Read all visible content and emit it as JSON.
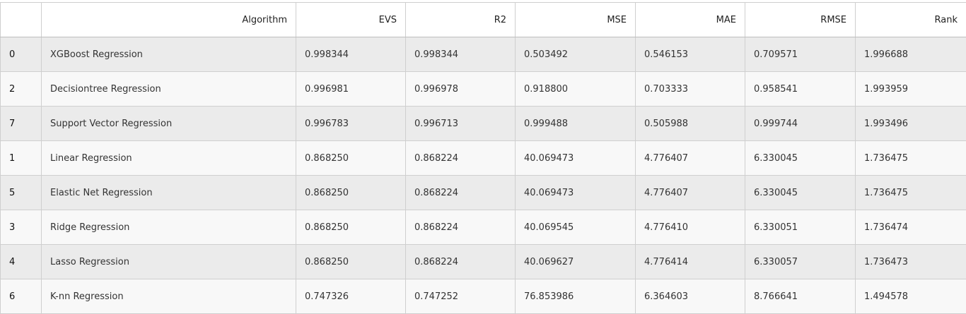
{
  "table": {
    "columns": [
      "",
      "Algorithm",
      "EVS",
      "R2",
      "MSE",
      "MAE",
      "RMSE",
      "Rank"
    ],
    "rows": [
      [
        "0",
        "XGBoost Regression",
        "0.998344",
        "0.998344",
        "0.503492",
        "0.546153",
        "0.709571",
        "1.996688"
      ],
      [
        "2",
        "Decisiontree Regression",
        "0.996981",
        "0.996978",
        "0.918800",
        "0.703333",
        "0.958541",
        "1.993959"
      ],
      [
        "7",
        "Support Vector Regression",
        "0.996783",
        "0.996713",
        "0.999488",
        "0.505988",
        "0.999744",
        "1.993496"
      ],
      [
        "1",
        "Linear Regression",
        "0.868250",
        "0.868224",
        "40.069473",
        "4.776407",
        "6.330045",
        "1.736475"
      ],
      [
        "5",
        "Elastic Net Regression",
        "0.868250",
        "0.868224",
        "40.069473",
        "4.776407",
        "6.330045",
        "1.736475"
      ],
      [
        "3",
        "Ridge Regression",
        "0.868250",
        "0.868224",
        "40.069545",
        "4.776410",
        "6.330051",
        "1.736474"
      ],
      [
        "4",
        "Lasso Regression",
        "0.868250",
        "0.868224",
        "40.069627",
        "4.776414",
        "6.330057",
        "1.736473"
      ],
      [
        "6",
        "K-nn Regression",
        "0.747326",
        "0.747252",
        "76.853986",
        "6.364603",
        "8.766641",
        "1.494578"
      ]
    ]
  }
}
